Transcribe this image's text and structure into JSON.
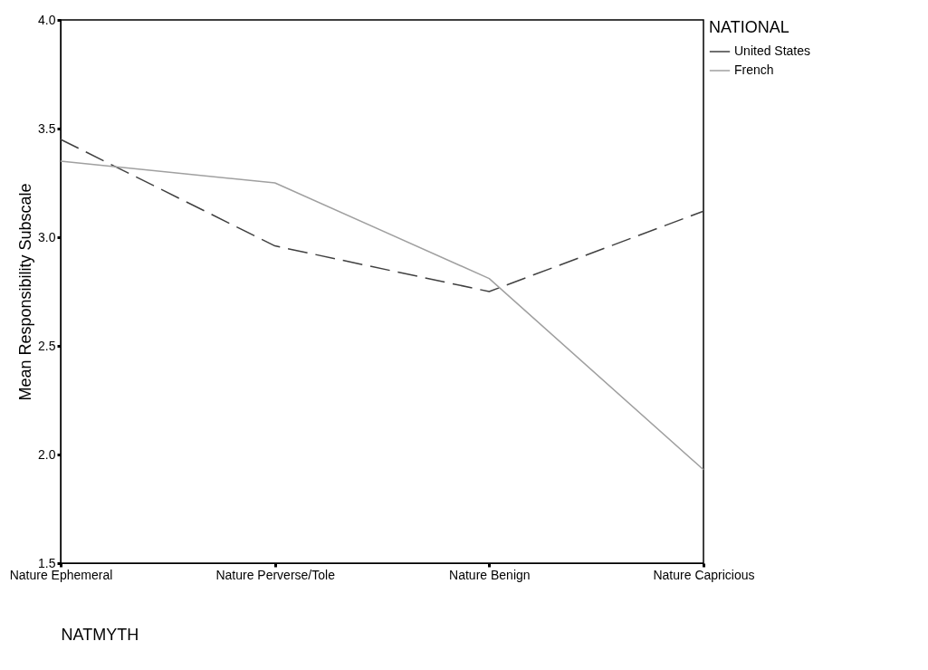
{
  "chart_data": {
    "type": "line",
    "xlabel": "NATMYTH",
    "ylabel": "Mean Responsibility Subscale",
    "legend_title": "NATIONAL",
    "legend": "right",
    "categories": [
      "Nature Ephemeral",
      "Nature Perverse/Tole",
      "Nature Benign",
      "Nature Capricious"
    ],
    "series": [
      {
        "name": "United States",
        "color": "#404040",
        "line_style": "dashed",
        "values": [
          3.45,
          2.96,
          2.75,
          3.12
        ]
      },
      {
        "name": "French",
        "color": "#a0a0a0",
        "line_style": "solid",
        "values": [
          3.35,
          3.25,
          2.81,
          1.93
        ]
      }
    ],
    "ylim": [
      1.5,
      4.0
    ],
    "yticks": [
      1.5,
      {
        "value": 2,
        "label": "2.0"
      },
      2.5,
      {
        "value": 3,
        "label": "3.0"
      },
      3.5,
      {
        "value": 4,
        "label": "4.0"
      }
    ],
    "grid": false,
    "marker": "none"
  }
}
